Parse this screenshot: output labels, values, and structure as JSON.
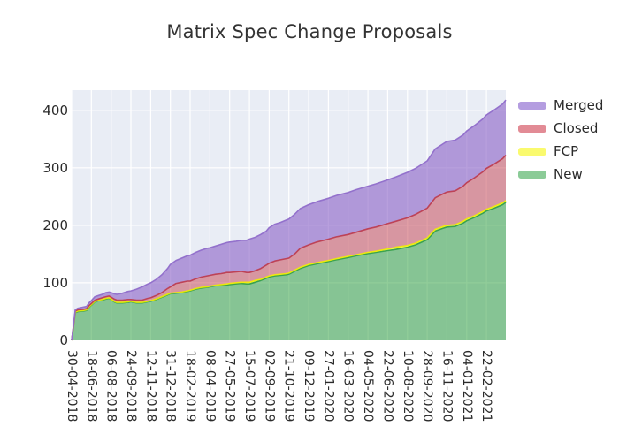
{
  "chart_data": {
    "type": "area",
    "stacked": true,
    "title": "Matrix Spec Change Proposals",
    "xlabel": "",
    "ylabel": "",
    "ylim": [
      0,
      435
    ],
    "y_ticks": [
      0,
      100,
      200,
      300,
      400
    ],
    "x_start": "2018-04-30",
    "x_span_days": 1077,
    "x_tick_interval_days": 49,
    "x_tick_labels": [
      "30-04-2018",
      "18-06-2018",
      "06-08-2018",
      "24-09-2018",
      "12-11-2018",
      "31-12-2018",
      "18-02-2019",
      "08-04-2019",
      "27-05-2019",
      "15-07-2019",
      "02-09-2019",
      "21-10-2019",
      "09-12-2019",
      "27-01-2020",
      "16-03-2020",
      "04-05-2020",
      "22-06-2020",
      "10-08-2020",
      "28-09-2020",
      "16-11-2020",
      "04-01-2021",
      "22-02-2021"
    ],
    "grid": true,
    "grid_color": "#ffffff",
    "plot_bg": "#e9edf5",
    "legend_position": "right-top",
    "legend_order": [
      "Merged",
      "Closed",
      "FCP",
      "New"
    ],
    "series": [
      {
        "name": "New",
        "fill": "rgba(45,160,60,0.52)",
        "line": "#3aa24e",
        "swatch": "#8bcb97"
      },
      {
        "name": "FCP",
        "fill": "rgba(255,255,0,0.55)",
        "line": "rgba(238,238,0,0.9)",
        "swatch": "#fafa6e"
      },
      {
        "name": "Closed",
        "fill": "rgba(200,70,85,0.52)",
        "line": "#bd4257",
        "swatch": "#e28b95"
      },
      {
        "name": "Merged",
        "fill": "rgba(140,100,200,0.62)",
        "line": "#9371cc",
        "swatch": "#b49de0"
      }
    ],
    "point_format": [
      "date",
      "New",
      "FCP",
      "Closed",
      "Merged"
    ],
    "points": [
      [
        "2018-04-30",
        0,
        0,
        0,
        0
      ],
      [
        "2018-05-04",
        20,
        0,
        1,
        1
      ],
      [
        "2018-05-09",
        48,
        1,
        2,
        2
      ],
      [
        "2018-05-16",
        50,
        1,
        2,
        3
      ],
      [
        "2018-05-30",
        51,
        1,
        2,
        4
      ],
      [
        "2018-06-06",
        52,
        1,
        2,
        4
      ],
      [
        "2018-06-13",
        58,
        1,
        2,
        5
      ],
      [
        "2018-06-18",
        61,
        1,
        2,
        5
      ],
      [
        "2018-06-27",
        67,
        1,
        2,
        6
      ],
      [
        "2018-07-06",
        69,
        1,
        2,
        6
      ],
      [
        "2018-07-15",
        70,
        1,
        3,
        6
      ],
      [
        "2018-07-24",
        72,
        1,
        3,
        7
      ],
      [
        "2018-08-01",
        73,
        1,
        3,
        7
      ],
      [
        "2018-08-06",
        71,
        1,
        3,
        8
      ],
      [
        "2018-08-13",
        67,
        1,
        4,
        9
      ],
      [
        "2018-08-20",
        65,
        1,
        4,
        10
      ],
      [
        "2018-08-27",
        65,
        1,
        4,
        11
      ],
      [
        "2018-09-03",
        65,
        1,
        4,
        12
      ],
      [
        "2018-09-17",
        66,
        1,
        4,
        14
      ],
      [
        "2018-09-24",
        67,
        1,
        3,
        15
      ],
      [
        "2018-10-08",
        65,
        1,
        4,
        19
      ],
      [
        "2018-10-22",
        65,
        1,
        4,
        23
      ],
      [
        "2018-11-05",
        67,
        1,
        5,
        25
      ],
      [
        "2018-11-12",
        68,
        1,
        5,
        26
      ],
      [
        "2018-11-26",
        71,
        1,
        6,
        28
      ],
      [
        "2018-12-10",
        75,
        1,
        7,
        31
      ],
      [
        "2018-12-24",
        79,
        1,
        10,
        35
      ],
      [
        "2018-12-31",
        81,
        1,
        11,
        39
      ],
      [
        "2019-01-14",
        82,
        1,
        16,
        40
      ],
      [
        "2019-01-28",
        83,
        1,
        17,
        42
      ],
      [
        "2019-02-11",
        85,
        1,
        17,
        44
      ],
      [
        "2019-02-18",
        86,
        1,
        16,
        45
      ],
      [
        "2019-03-04",
        89,
        1,
        17,
        46
      ],
      [
        "2019-03-18",
        91,
        1,
        18,
        47
      ],
      [
        "2019-04-01",
        92,
        1,
        19,
        48
      ],
      [
        "2019-04-08",
        93,
        1,
        19,
        48
      ],
      [
        "2019-04-22",
        95,
        1,
        19,
        49
      ],
      [
        "2019-05-06",
        96,
        1,
        19,
        51
      ],
      [
        "2019-05-20",
        96,
        2,
        20,
        52
      ],
      [
        "2019-05-27",
        97,
        2,
        19,
        53
      ],
      [
        "2019-06-10",
        98,
        2,
        19,
        53
      ],
      [
        "2019-06-24",
        99,
        2,
        19,
        54
      ],
      [
        "2019-07-08",
        98,
        3,
        17,
        56
      ],
      [
        "2019-07-15",
        98,
        3,
        17,
        58
      ],
      [
        "2019-07-29",
        101,
        3,
        17,
        58
      ],
      [
        "2019-08-12",
        104,
        2,
        19,
        59
      ],
      [
        "2019-08-26",
        108,
        2,
        21,
        59
      ],
      [
        "2019-09-02",
        110,
        2,
        22,
        62
      ],
      [
        "2019-09-16",
        112,
        2,
        24,
        64
      ],
      [
        "2019-09-30",
        113,
        2,
        25,
        65
      ],
      [
        "2019-10-14",
        114,
        2,
        26,
        67
      ],
      [
        "2019-10-21",
        115,
        2,
        26,
        68
      ],
      [
        "2019-11-04",
        120,
        2,
        28,
        69
      ],
      [
        "2019-11-18",
        125,
        2,
        33,
        69
      ],
      [
        "2019-12-09",
        130,
        2,
        34,
        70
      ],
      [
        "2019-12-29",
        133,
        2,
        36,
        70
      ],
      [
        "2020-01-27",
        137,
        2,
        37,
        71
      ],
      [
        "2020-02-16",
        140,
        2,
        38,
        72
      ],
      [
        "2020-03-16",
        144,
        2,
        38,
        73
      ],
      [
        "2020-04-05",
        147,
        2,
        39,
        74
      ],
      [
        "2020-05-04",
        151,
        2,
        41,
        74
      ],
      [
        "2020-05-24",
        153,
        2,
        42,
        75
      ],
      [
        "2020-06-22",
        156,
        3,
        44,
        76
      ],
      [
        "2020-07-12",
        158,
        4,
        45,
        77
      ],
      [
        "2020-08-10",
        162,
        3,
        48,
        79
      ],
      [
        "2020-08-30",
        166,
        3,
        50,
        80
      ],
      [
        "2020-09-28",
        175,
        3,
        52,
        82
      ],
      [
        "2020-10-18",
        190,
        3,
        55,
        85
      ],
      [
        "2020-11-07",
        195,
        3,
        57,
        87
      ],
      [
        "2020-11-16",
        197,
        3,
        58,
        88
      ],
      [
        "2020-12-06",
        198,
        3,
        59,
        88
      ],
      [
        "2020-12-26",
        204,
        3,
        61,
        89
      ],
      [
        "2021-01-04",
        208,
        3,
        63,
        90
      ],
      [
        "2021-01-24",
        214,
        3,
        66,
        91
      ],
      [
        "2021-02-13",
        221,
        3,
        69,
        92
      ],
      [
        "2021-02-22",
        225,
        3,
        71,
        93
      ],
      [
        "2021-03-14",
        230,
        3,
        74,
        94
      ],
      [
        "2021-04-03",
        236,
        3,
        77,
        95
      ],
      [
        "2021-04-11",
        240,
        3,
        79,
        96
      ]
    ]
  }
}
